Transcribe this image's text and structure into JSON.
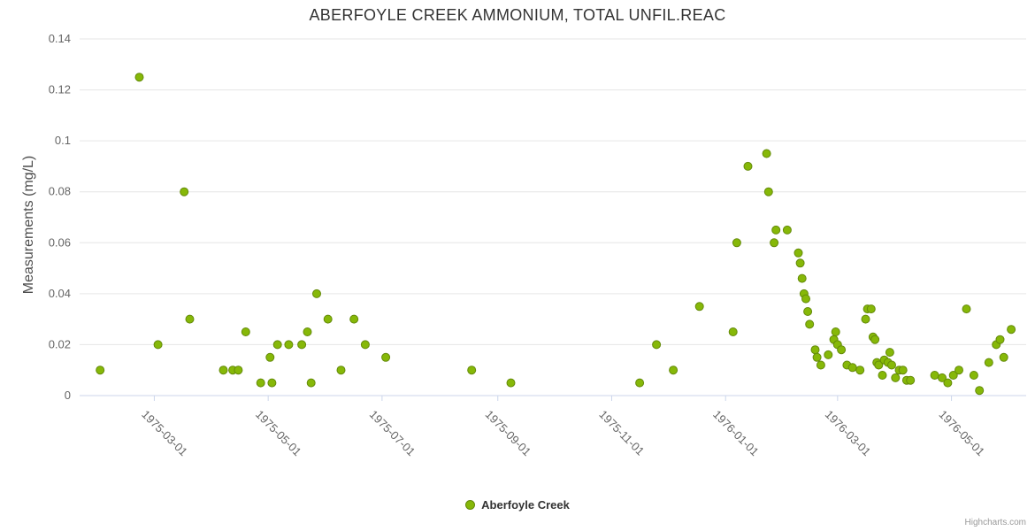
{
  "title": "ABERFOYLE CREEK AMMONIUM, TOTAL UNFIL.REAC",
  "y_axis": {
    "title": "Measurements (mg/L)",
    "ticks": [
      0,
      0.02,
      0.04,
      0.06,
      0.08,
      0.1,
      0.12,
      0.14
    ],
    "labels": [
      "0",
      "0.02",
      "0.04",
      "0.06",
      "0.08",
      "0.1",
      "0.12",
      "0.14"
    ]
  },
  "x_axis": {
    "tick_labels": [
      "1975-03-01",
      "1975-05-01",
      "1975-07-01",
      "1975-09-01",
      "1975-11-01",
      "1976-01-01",
      "1976-03-01",
      "1976-05-01"
    ]
  },
  "legend": {
    "label": "Aberfoyle Creek"
  },
  "credits": "Highcharts.com",
  "colors": {
    "marker_fill": "#86b808",
    "marker_stroke": "#648a0a",
    "grid": "#e6e6e6",
    "axis_line": "#ccd6eb",
    "title_text": "#333333",
    "tick_text": "#666666"
  },
  "chart_data": {
    "type": "scatter",
    "title": "ABERFOYLE CREEK AMMONIUM, TOTAL UNFIL.REAC",
    "xlabel": "",
    "ylabel": "Measurements (mg/L)",
    "ylim": [
      0,
      0.14
    ],
    "xlim": [
      "1975-01-20",
      "1976-06-10"
    ],
    "x_tick_labels": [
      "1975-03-01",
      "1975-05-01",
      "1975-07-01",
      "1975-09-01",
      "1975-11-01",
      "1976-01-01",
      "1976-03-01",
      "1976-05-01"
    ],
    "grid": "horizontal",
    "legend_position": "bottom-center",
    "series": [
      {
        "name": "Aberfoyle Creek",
        "points": [
          [
            "1975-01-31",
            0.01
          ],
          [
            "1975-02-21",
            0.125
          ],
          [
            "1975-03-03",
            0.02
          ],
          [
            "1975-03-17",
            0.08
          ],
          [
            "1975-03-20",
            0.03
          ],
          [
            "1975-04-07",
            0.01
          ],
          [
            "1975-04-12",
            0.01
          ],
          [
            "1975-04-15",
            0.01
          ],
          [
            "1975-04-19",
            0.025
          ],
          [
            "1975-04-27",
            0.005
          ],
          [
            "1975-05-02",
            0.015
          ],
          [
            "1975-05-03",
            0.005
          ],
          [
            "1975-05-06",
            0.02
          ],
          [
            "1975-05-12",
            0.02
          ],
          [
            "1975-05-19",
            0.02
          ],
          [
            "1975-05-22",
            0.025
          ],
          [
            "1975-05-24",
            0.005
          ],
          [
            "1975-05-27",
            0.04
          ],
          [
            "1975-06-02",
            0.03
          ],
          [
            "1975-06-09",
            0.01
          ],
          [
            "1975-06-16",
            0.03
          ],
          [
            "1975-06-22",
            0.02
          ],
          [
            "1975-07-03",
            0.015
          ],
          [
            "1975-08-18",
            0.01
          ],
          [
            "1975-09-08",
            0.005
          ],
          [
            "1975-11-16",
            0.005
          ],
          [
            "1975-11-25",
            0.02
          ],
          [
            "1975-12-04",
            0.01
          ],
          [
            "1975-12-18",
            0.035
          ],
          [
            "1976-01-05",
            0.025
          ],
          [
            "1976-01-07",
            0.06
          ],
          [
            "1976-01-13",
            0.09
          ],
          [
            "1976-01-23",
            0.095
          ],
          [
            "1976-01-24",
            0.08
          ],
          [
            "1976-01-27",
            0.06
          ],
          [
            "1976-01-28",
            0.065
          ],
          [
            "1976-02-03",
            0.065
          ],
          [
            "1976-02-09",
            0.056
          ],
          [
            "1976-02-10",
            0.052
          ],
          [
            "1976-02-11",
            0.046
          ],
          [
            "1976-02-12",
            0.04
          ],
          [
            "1976-02-13",
            0.038
          ],
          [
            "1976-02-14",
            0.033
          ],
          [
            "1976-02-15",
            0.028
          ],
          [
            "1976-02-18",
            0.018
          ],
          [
            "1976-02-19",
            0.015
          ],
          [
            "1976-02-21",
            0.012
          ],
          [
            "1976-02-25",
            0.016
          ],
          [
            "1976-02-28",
            0.022
          ],
          [
            "1976-02-29",
            0.025
          ],
          [
            "1976-03-01",
            0.02
          ],
          [
            "1976-03-03",
            0.018
          ],
          [
            "1976-03-06",
            0.012
          ],
          [
            "1976-03-09",
            0.011
          ],
          [
            "1976-03-13",
            0.01
          ],
          [
            "1976-03-16",
            0.03
          ],
          [
            "1976-03-17",
            0.034
          ],
          [
            "1976-03-19",
            0.034
          ],
          [
            "1976-03-20",
            0.023
          ],
          [
            "1976-03-21",
            0.022
          ],
          [
            "1976-03-22",
            0.013
          ],
          [
            "1976-03-23",
            0.012
          ],
          [
            "1976-03-25",
            0.008
          ],
          [
            "1976-03-26",
            0.014
          ],
          [
            "1976-03-28",
            0.013
          ],
          [
            "1976-03-29",
            0.017
          ],
          [
            "1976-03-30",
            0.012
          ],
          [
            "1976-04-01",
            0.007
          ],
          [
            "1976-04-03",
            0.01
          ],
          [
            "1976-04-05",
            0.01
          ],
          [
            "1976-04-07",
            0.006
          ],
          [
            "1976-04-09",
            0.006
          ],
          [
            "1976-04-22",
            0.008
          ],
          [
            "1976-04-26",
            0.007
          ],
          [
            "1976-04-29",
            0.005
          ],
          [
            "1976-05-02",
            0.008
          ],
          [
            "1976-05-05",
            0.01
          ],
          [
            "1976-05-09",
            0.034
          ],
          [
            "1976-05-13",
            0.008
          ],
          [
            "1976-05-16",
            0.002
          ],
          [
            "1976-05-21",
            0.013
          ],
          [
            "1976-05-25",
            0.02
          ],
          [
            "1976-05-27",
            0.022
          ],
          [
            "1976-05-29",
            0.015
          ],
          [
            "1976-06-02",
            0.026
          ]
        ]
      }
    ]
  }
}
